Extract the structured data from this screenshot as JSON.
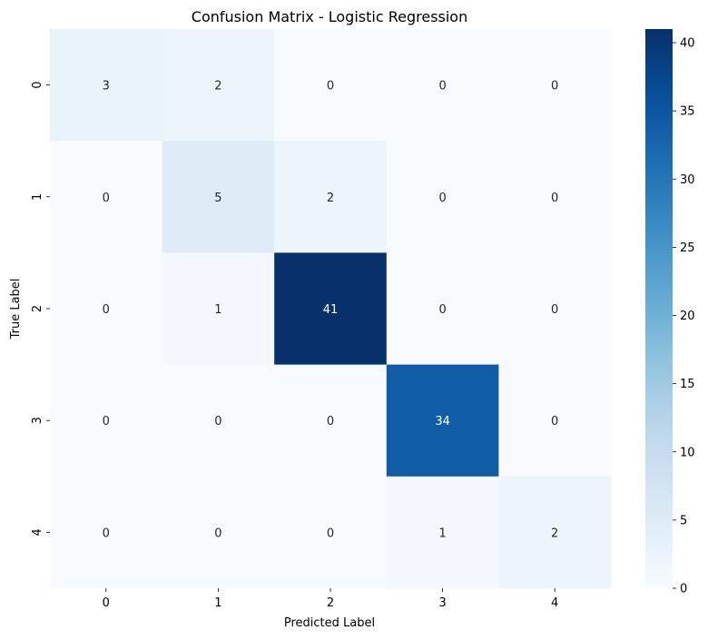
{
  "chart_data": {
    "type": "heatmap",
    "title": "Confusion Matrix - Logistic Regression",
    "xlabel": "Predicted Label",
    "ylabel": "True Label",
    "x_categories": [
      "0",
      "1",
      "2",
      "3",
      "4"
    ],
    "y_categories": [
      "0",
      "1",
      "2",
      "3",
      "4"
    ],
    "values": [
      [
        3,
        2,
        0,
        0,
        0
      ],
      [
        0,
        5,
        2,
        0,
        0
      ],
      [
        0,
        1,
        41,
        0,
        0
      ],
      [
        0,
        0,
        0,
        34,
        0
      ],
      [
        0,
        0,
        0,
        1,
        2
      ]
    ],
    "colormap": "Blues",
    "colorbar": {
      "range": [
        0,
        41
      ],
      "ticks": [
        0,
        5,
        10,
        15,
        20,
        25,
        30,
        35,
        40
      ]
    },
    "annotations": true
  }
}
